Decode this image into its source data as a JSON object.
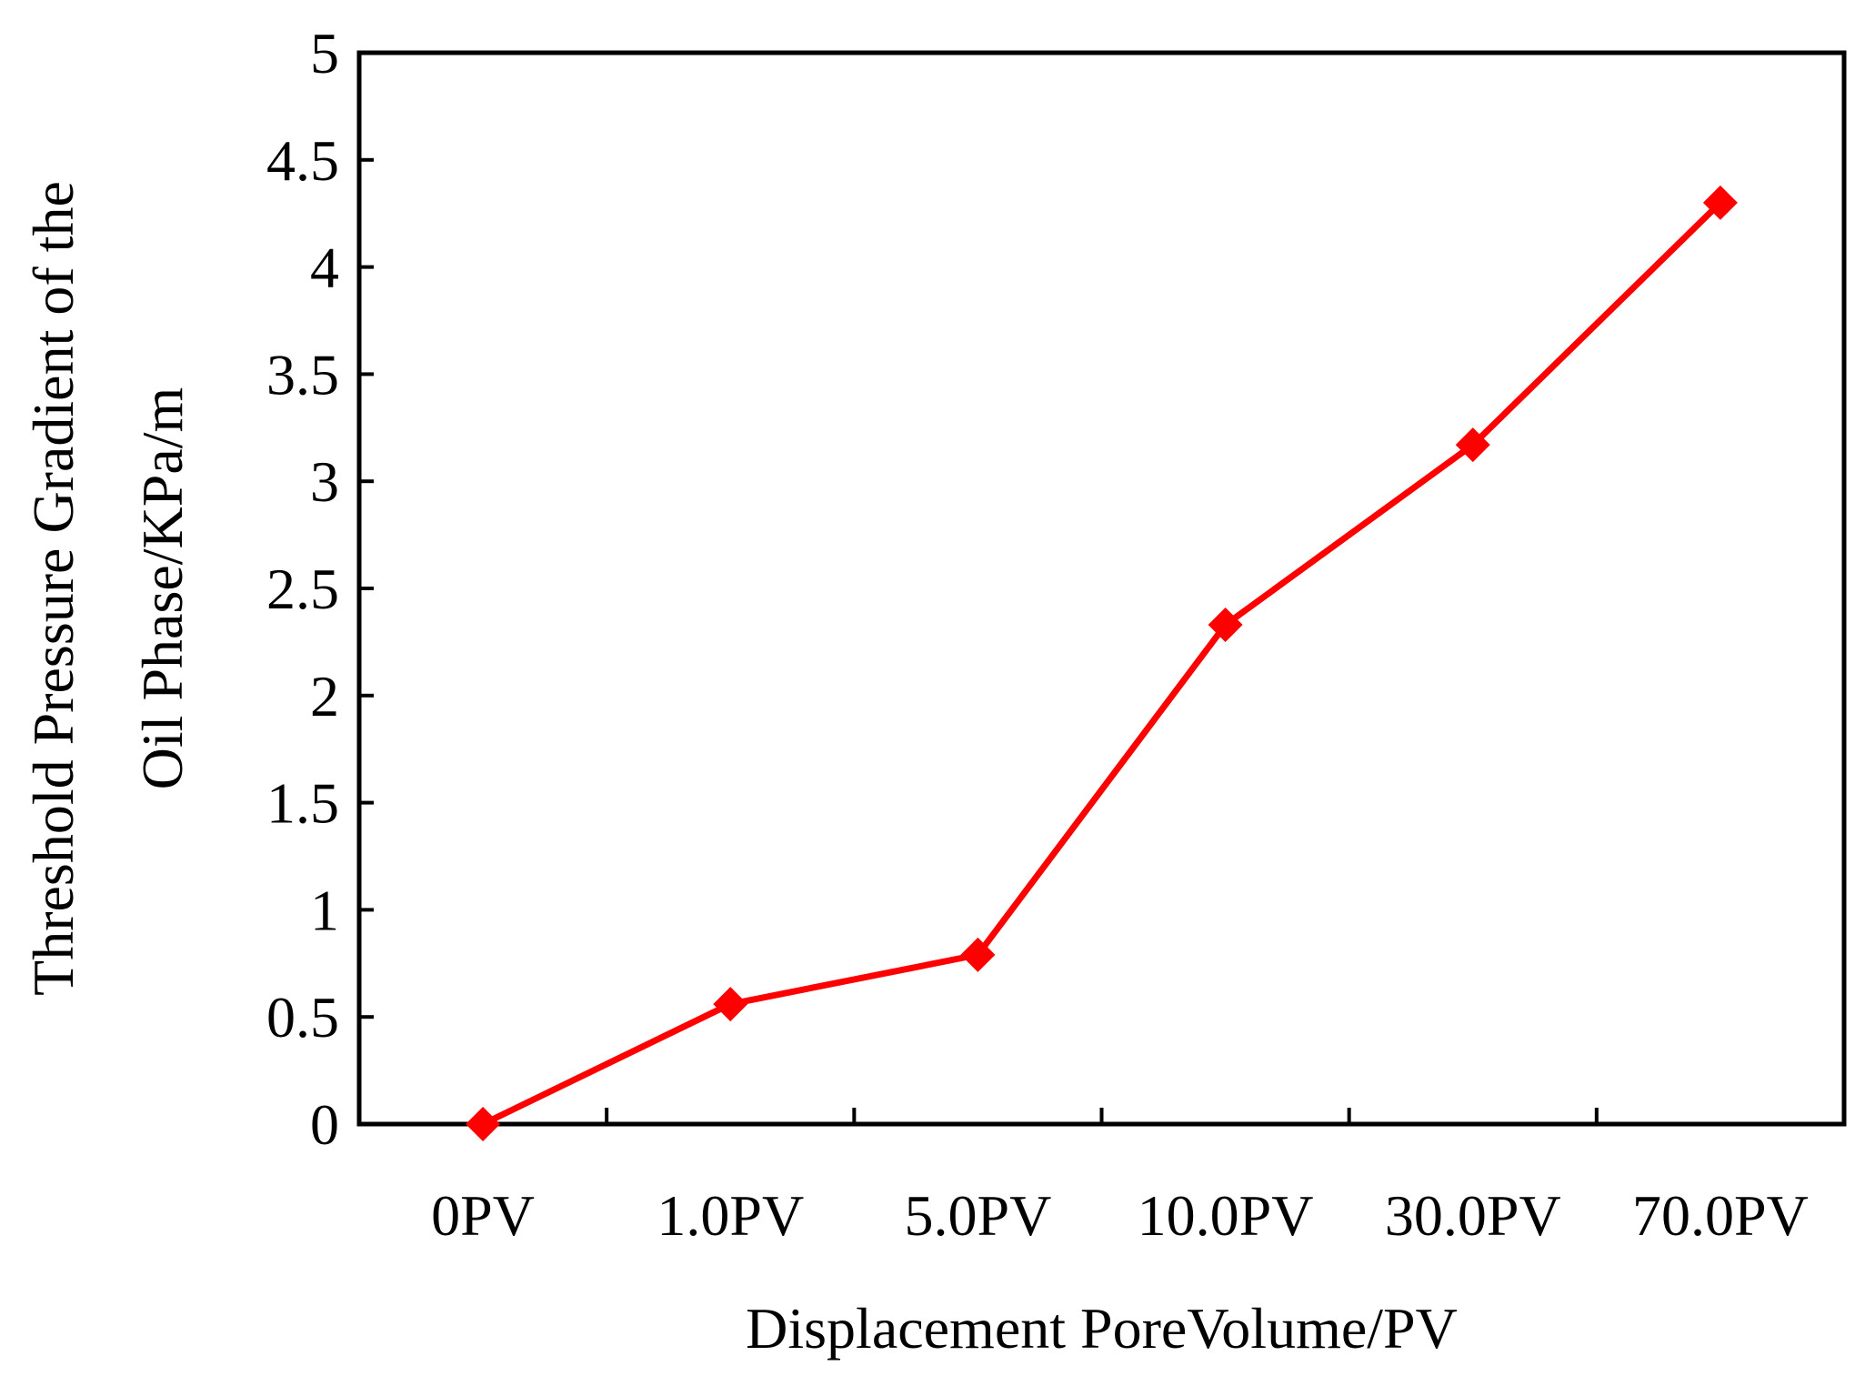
{
  "chart_data": {
    "type": "line",
    "title": "",
    "xlabel": "Displacement PoreVolume/PV",
    "ylabel_lines": [
      "Threshold Pressure Gradient of the",
      "Oil Phase/KPa/m"
    ],
    "categories": [
      "0PV",
      "1.0PV",
      "5.0PV",
      "10.0PV",
      "30.0PV",
      "70.0PV"
    ],
    "y_ticks": [
      "0",
      "0.5",
      "1",
      "1.5",
      "2",
      "2.5",
      "3",
      "3.5",
      "4",
      "4.5",
      "5"
    ],
    "ylim": [
      0,
      5
    ],
    "grid": false,
    "legend": "none",
    "series": [
      {
        "values": [
          0.0,
          0.56,
          0.79,
          2.33,
          3.17,
          4.3
        ],
        "color": "#ff0000",
        "marker": "diamond"
      }
    ]
  }
}
